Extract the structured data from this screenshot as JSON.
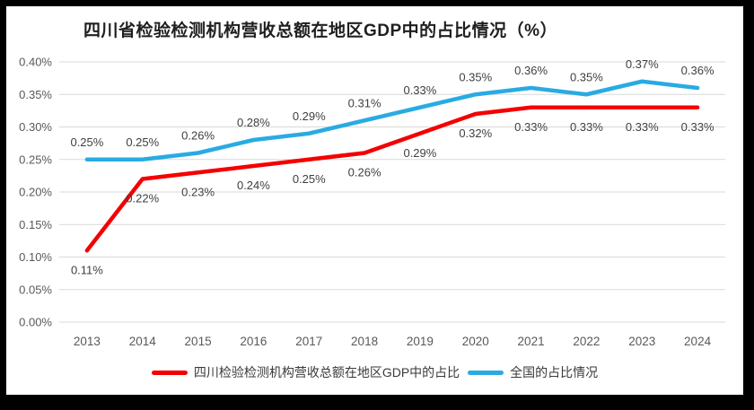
{
  "chart_data": {
    "type": "line",
    "title": "四川省检验检测机构营收总额在地区GDP中的占比情况（%）",
    "categories": [
      "2013",
      "2014",
      "2015",
      "2016",
      "2017",
      "2018",
      "2019",
      "2020",
      "2021",
      "2022",
      "2023",
      "2024"
    ],
    "series": [
      {
        "name": "四川检验检测机构营收总额在地区GDP中的占比",
        "color": "#f40000",
        "values": [
          0.11,
          0.22,
          0.23,
          0.24,
          0.25,
          0.26,
          0.29,
          0.32,
          0.33,
          0.33,
          0.33,
          0.33
        ],
        "labels": [
          "0.11%",
          "0.22%",
          "0.23%",
          "0.24%",
          "0.25%",
          "0.26%",
          "0.29%",
          "0.32%",
          "0.33%",
          "0.33%",
          "0.33%",
          "0.33%"
        ],
        "label_position": "below"
      },
      {
        "name": "全国的占比情况",
        "color": "#29abe2",
        "values": [
          0.25,
          0.25,
          0.26,
          0.28,
          0.29,
          0.31,
          0.33,
          0.35,
          0.36,
          0.35,
          0.37,
          0.36
        ],
        "labels": [
          "0.25%",
          "0.25%",
          "0.26%",
          "0.28%",
          "0.29%",
          "0.31%",
          "0.33%",
          "0.35%",
          "0.36%",
          "0.35%",
          "0.37%",
          "0.36%"
        ],
        "label_position": "above"
      }
    ],
    "y_ticks": [
      {
        "value": 0.0,
        "label": "0.00%"
      },
      {
        "value": 0.05,
        "label": "0.05%"
      },
      {
        "value": 0.1,
        "label": "0.10%"
      },
      {
        "value": 0.15,
        "label": "0.15%"
      },
      {
        "value": 0.2,
        "label": "0.20%"
      },
      {
        "value": 0.25,
        "label": "0.25%"
      },
      {
        "value": 0.3,
        "label": "0.30%"
      },
      {
        "value": 0.35,
        "label": "0.35%"
      },
      {
        "value": 0.4,
        "label": "0.40%"
      }
    ],
    "ylim": [
      0,
      0.4
    ],
    "unit": "%",
    "grid": true,
    "legend_position": "bottom"
  }
}
